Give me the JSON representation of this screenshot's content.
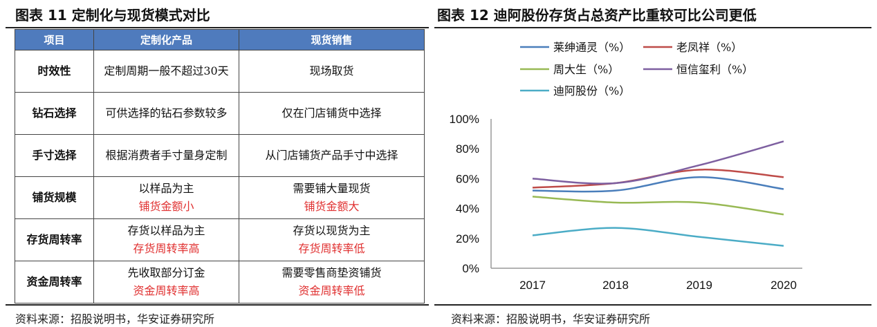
{
  "left": {
    "title": "图表 11 定制化与现货模式对比",
    "table": {
      "headers": [
        "项目",
        "定制化产品",
        "现货销售"
      ],
      "rows": [
        {
          "item": "时效性",
          "custom": "定制周期一般不超过30天",
          "custom_note": "",
          "spot": "现场取货",
          "spot_note": ""
        },
        {
          "item": "钻石选择",
          "custom": "可供选择的钻石参数较多",
          "custom_note": "",
          "spot": "仅在门店铺货中选择",
          "spot_note": ""
        },
        {
          "item": "手寸选择",
          "custom": "根据消费者手寸量身定制",
          "custom_note": "",
          "spot": "从门店铺货产品手寸中选择",
          "spot_note": ""
        },
        {
          "item": "铺货规模",
          "custom": "以样品为主",
          "custom_note": "铺货金额小",
          "spot": "需要铺大量现货",
          "spot_note": "铺货金额大"
        },
        {
          "item": "存货周转率",
          "custom": "存货以样品为主",
          "custom_note": "存货周转率高",
          "spot": "存货以现货为主",
          "spot_note": "存货周转率低"
        },
        {
          "item": "资金周转率",
          "custom": "先收取部分订金",
          "custom_note": "资金周转率高",
          "spot": "需要零售商垫资铺货",
          "spot_note": "资金周转率低"
        }
      ]
    },
    "source": "资料来源：招股说明书，华安证券研究所"
  },
  "right": {
    "title": "图表 12 迪阿股份存货占总资产比重较可比公司更低",
    "source": "资料来源：招股说明书，华安证券研究所"
  },
  "colors": {
    "header_bg": "#4f7bbd",
    "highlight": "#e03030"
  },
  "chart_data": {
    "type": "line",
    "categories": [
      "2017",
      "2018",
      "2019",
      "2020"
    ],
    "ylim": [
      0,
      100
    ],
    "yticks": [
      "0%",
      "20%",
      "40%",
      "60%",
      "80%",
      "100%"
    ],
    "grid": false,
    "legend": "top",
    "series": [
      {
        "name": "莱绅通灵（%）",
        "color": "#4a7ebb",
        "values": [
          52,
          52,
          61,
          53
        ]
      },
      {
        "name": "老凤祥（%）",
        "color": "#be4b48",
        "values": [
          54,
          57,
          66,
          61
        ]
      },
      {
        "name": "周大生（%）",
        "color": "#98b954",
        "values": [
          48,
          44,
          44,
          36
        ]
      },
      {
        "name": "恒信玺利（%）",
        "color": "#7d5fa0",
        "values": [
          60,
          57,
          69,
          85
        ]
      },
      {
        "name": "迪阿股份（%）",
        "color": "#4bacc6",
        "values": [
          22,
          27,
          21,
          15
        ]
      }
    ]
  }
}
